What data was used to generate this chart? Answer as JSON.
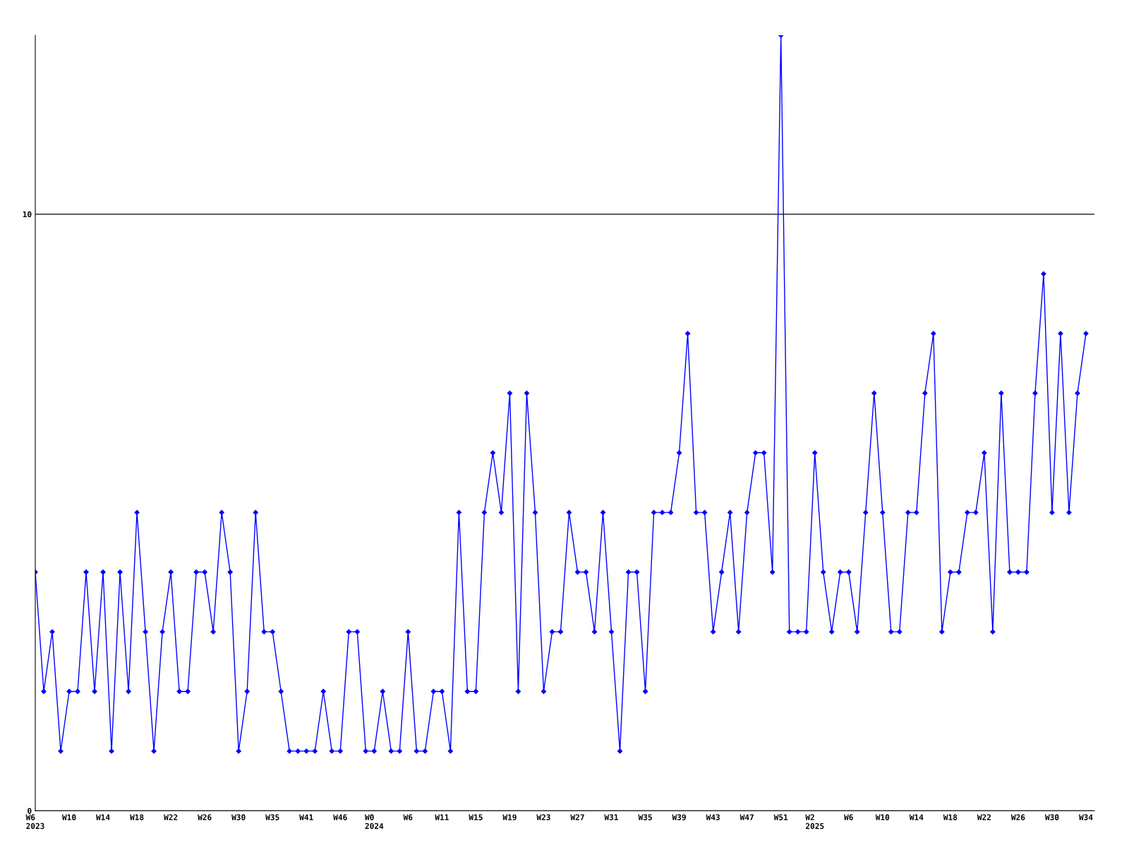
{
  "chart_data": {
    "type": "line",
    "categories": [
      "W6\n2023",
      null,
      null,
      null,
      "W10",
      null,
      null,
      null,
      "W14",
      null,
      null,
      null,
      "W18",
      null,
      null,
      null,
      "W22",
      null,
      null,
      null,
      "W26",
      null,
      null,
      null,
      "W30",
      null,
      null,
      null,
      "W35",
      null,
      null,
      null,
      "W41",
      null,
      null,
      null,
      "W46",
      null,
      null,
      null,
      "W0\n2024",
      null,
      null,
      null,
      "W6",
      null,
      null,
      null,
      "W11",
      null,
      null,
      null,
      "W15",
      null,
      null,
      null,
      "W19",
      null,
      null,
      null,
      "W23",
      null,
      null,
      null,
      "W27",
      null,
      null,
      null,
      "W31",
      null,
      null,
      null,
      "W35",
      null,
      null,
      null,
      "W39",
      null,
      null,
      null,
      "W43",
      null,
      null,
      null,
      "W47",
      null,
      null,
      null,
      "W51",
      null,
      null,
      null,
      "W2\n2025",
      null,
      null,
      null,
      "W6",
      null,
      null,
      null,
      "W10",
      null,
      null,
      null,
      "W14",
      null,
      null,
      null,
      "W18",
      null,
      null,
      null,
      "W22",
      null,
      null,
      null,
      "W26",
      null,
      null,
      null,
      "W30",
      null,
      null,
      null,
      "W34"
    ],
    "series": [
      {
        "color": "#0000ff",
        "values": [
          4,
          2,
          3,
          1,
          2,
          2,
          4,
          2,
          4,
          1,
          4,
          2,
          5,
          3,
          1,
          3,
          4,
          2,
          2,
          4,
          4,
          3,
          5,
          4,
          1,
          2,
          5,
          3,
          3,
          2,
          1,
          1,
          1,
          1,
          2,
          1,
          1,
          3,
          3,
          1,
          1,
          2,
          1,
          1,
          3,
          1,
          1,
          2,
          2,
          1,
          5,
          2,
          2,
          5,
          6,
          5,
          7,
          2,
          7,
          5,
          2,
          3,
          3,
          5,
          4,
          4,
          3,
          5,
          3,
          1,
          4,
          4,
          2,
          5,
          5,
          5,
          6,
          8,
          5,
          5,
          3,
          4,
          5,
          3,
          5,
          6,
          6,
          4,
          13,
          3,
          3,
          3,
          6,
          4,
          3,
          4,
          4,
          3,
          5,
          7,
          5,
          3,
          3,
          5,
          5,
          7,
          8,
          3,
          4,
          4,
          5,
          5,
          6,
          3,
          7,
          4,
          4,
          4,
          7,
          9,
          5,
          8,
          5,
          7,
          8
        ]
      }
    ],
    "ylim": [
      0,
      13
    ],
    "yticks": [
      0,
      10
    ],
    "grid": "y",
    "marker": "diamond",
    "line_style": "solid",
    "legend": false
  }
}
